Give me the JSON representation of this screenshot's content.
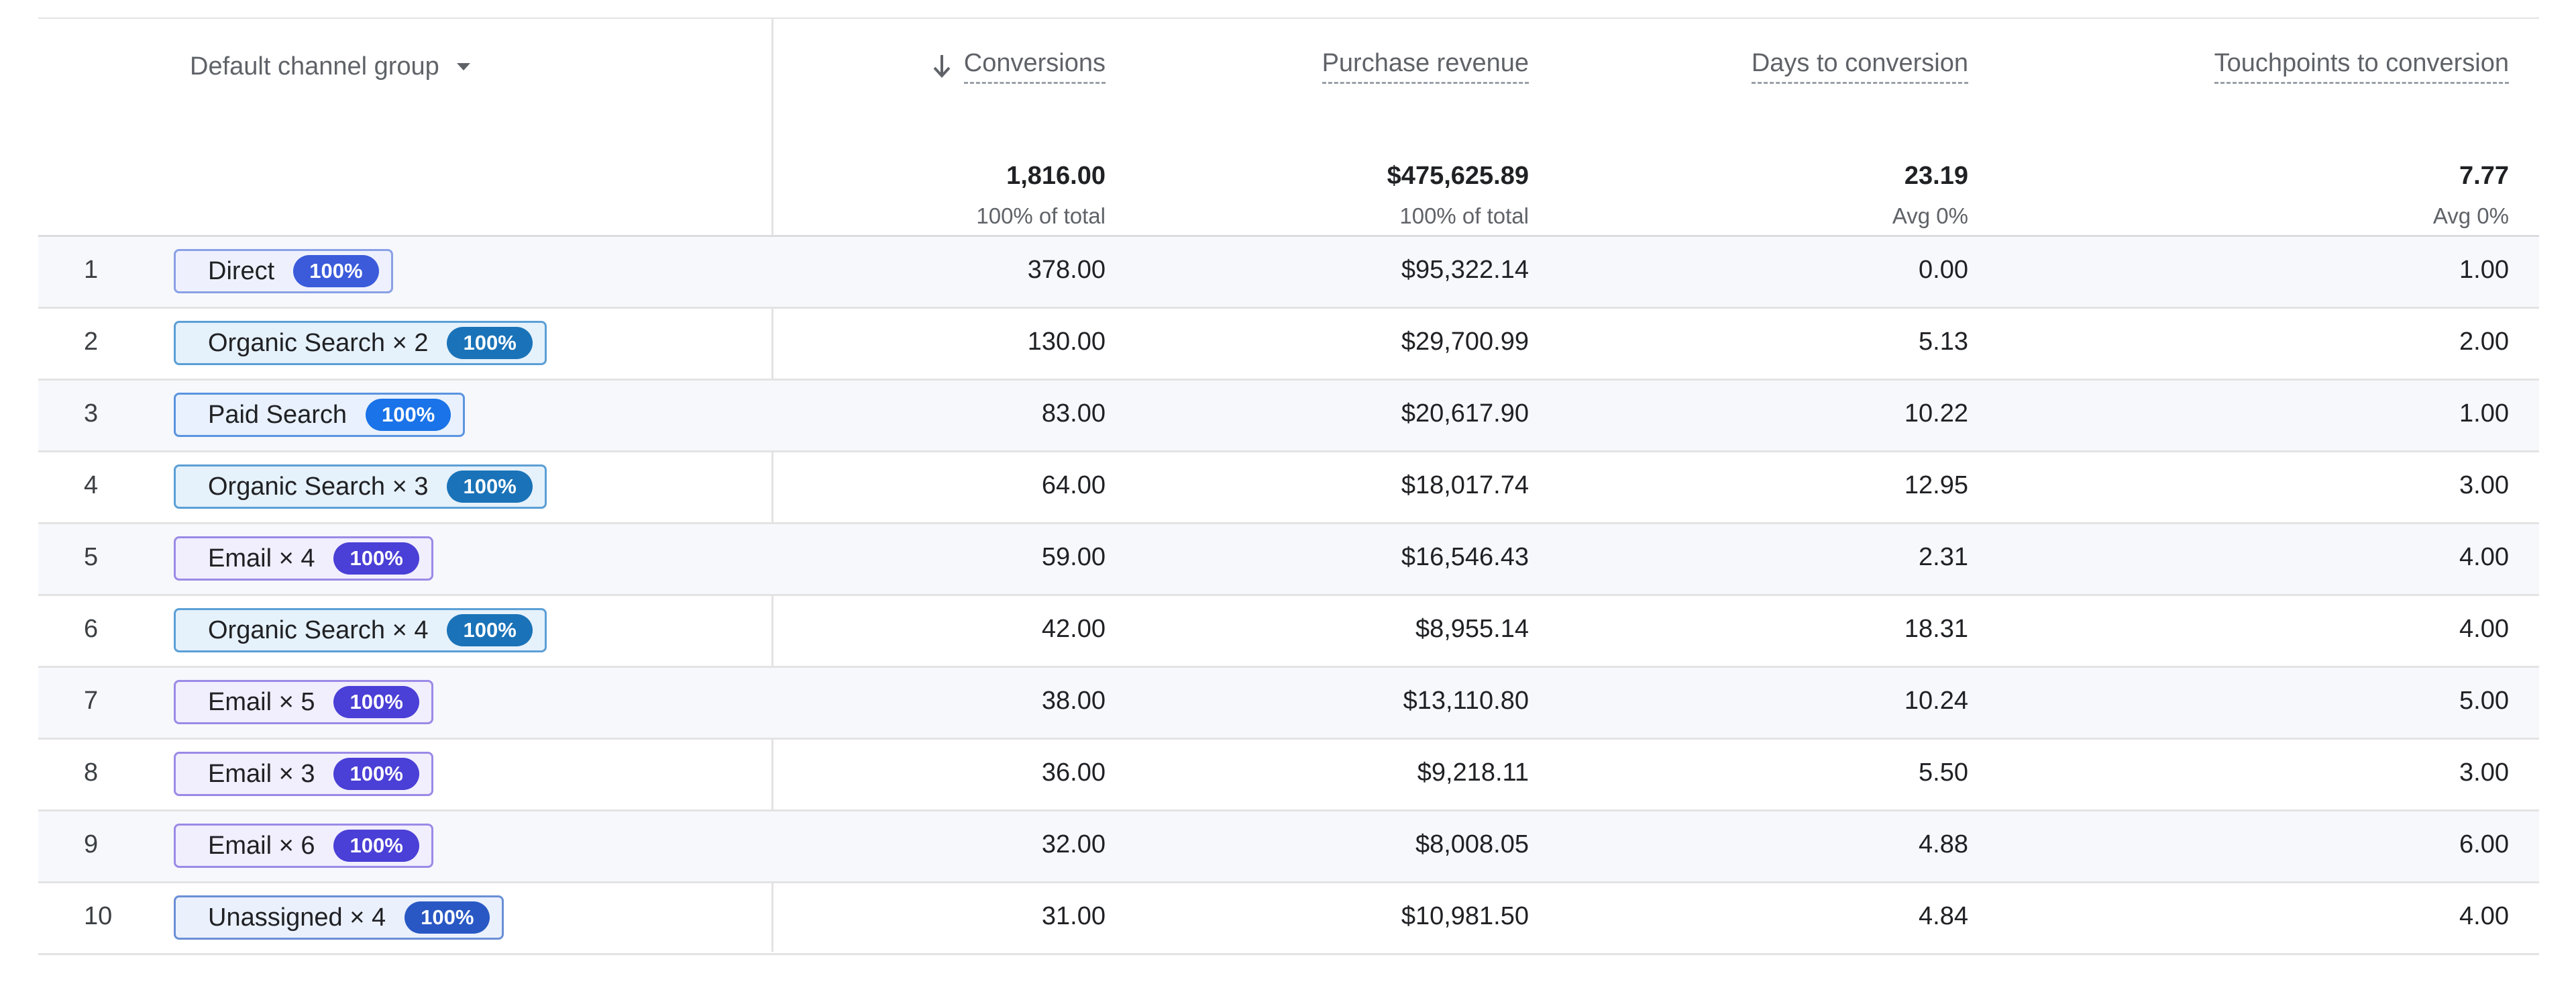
{
  "dimension": {
    "label": "Default channel group"
  },
  "columns": [
    {
      "label": "Conversions",
      "sorted": "desc"
    },
    {
      "label": "Purchase revenue"
    },
    {
      "label": "Days to conversion"
    },
    {
      "label": "Touchpoints to conversion"
    }
  ],
  "totals": [
    {
      "value": "1,816.00",
      "sub": "100% of total"
    },
    {
      "value": "$475,625.89",
      "sub": "100% of total"
    },
    {
      "value": "23.19",
      "sub": "Avg 0%"
    },
    {
      "value": "7.77",
      "sub": "Avg 0%"
    }
  ],
  "chip_colors": {
    "direct": {
      "border": "#8aa0e6",
      "bg": "#eef1fd",
      "badge": "#3b5bdb"
    },
    "organic": {
      "border": "#5b9fd6",
      "bg": "#e5f1fb",
      "badge": "#1a73b8"
    },
    "paid": {
      "border": "#5b94e0",
      "bg": "#e8f1fd",
      "badge": "#1a73e8"
    },
    "email": {
      "border": "#9b8ae6",
      "bg": "#f1eefd",
      "badge": "#4a3fd6"
    },
    "unassigned": {
      "border": "#6a8fd6",
      "bg": "#eaf0fc",
      "badge": "#2958c4"
    }
  },
  "rows": [
    {
      "rank": "1",
      "path": "Direct",
      "pct": "100%",
      "kind": "direct",
      "conversions": "378.00",
      "revenue": "$95,322.14",
      "days": "0.00",
      "touchpoints": "1.00"
    },
    {
      "rank": "2",
      "path": "Organic Search × 2",
      "pct": "100%",
      "kind": "organic",
      "conversions": "130.00",
      "revenue": "$29,700.99",
      "days": "5.13",
      "touchpoints": "2.00"
    },
    {
      "rank": "3",
      "path": "Paid Search",
      "pct": "100%",
      "kind": "paid",
      "conversions": "83.00",
      "revenue": "$20,617.90",
      "days": "10.22",
      "touchpoints": "1.00"
    },
    {
      "rank": "4",
      "path": "Organic Search × 3",
      "pct": "100%",
      "kind": "organic",
      "conversions": "64.00",
      "revenue": "$18,017.74",
      "days": "12.95",
      "touchpoints": "3.00"
    },
    {
      "rank": "5",
      "path": "Email × 4",
      "pct": "100%",
      "kind": "email",
      "conversions": "59.00",
      "revenue": "$16,546.43",
      "days": "2.31",
      "touchpoints": "4.00"
    },
    {
      "rank": "6",
      "path": "Organic Search × 4",
      "pct": "100%",
      "kind": "organic",
      "conversions": "42.00",
      "revenue": "$8,955.14",
      "days": "18.31",
      "touchpoints": "4.00"
    },
    {
      "rank": "7",
      "path": "Email × 5",
      "pct": "100%",
      "kind": "email",
      "conversions": "38.00",
      "revenue": "$13,110.80",
      "days": "10.24",
      "touchpoints": "5.00"
    },
    {
      "rank": "8",
      "path": "Email × 3",
      "pct": "100%",
      "kind": "email",
      "conversions": "36.00",
      "revenue": "$9,218.11",
      "days": "5.50",
      "touchpoints": "3.00"
    },
    {
      "rank": "9",
      "path": "Email × 6",
      "pct": "100%",
      "kind": "email",
      "conversions": "32.00",
      "revenue": "$8,008.05",
      "days": "4.88",
      "touchpoints": "6.00"
    },
    {
      "rank": "10",
      "path": "Unassigned × 4",
      "pct": "100%",
      "kind": "unassigned",
      "conversions": "31.00",
      "revenue": "$10,981.50",
      "days": "4.84",
      "touchpoints": "4.00"
    }
  ]
}
